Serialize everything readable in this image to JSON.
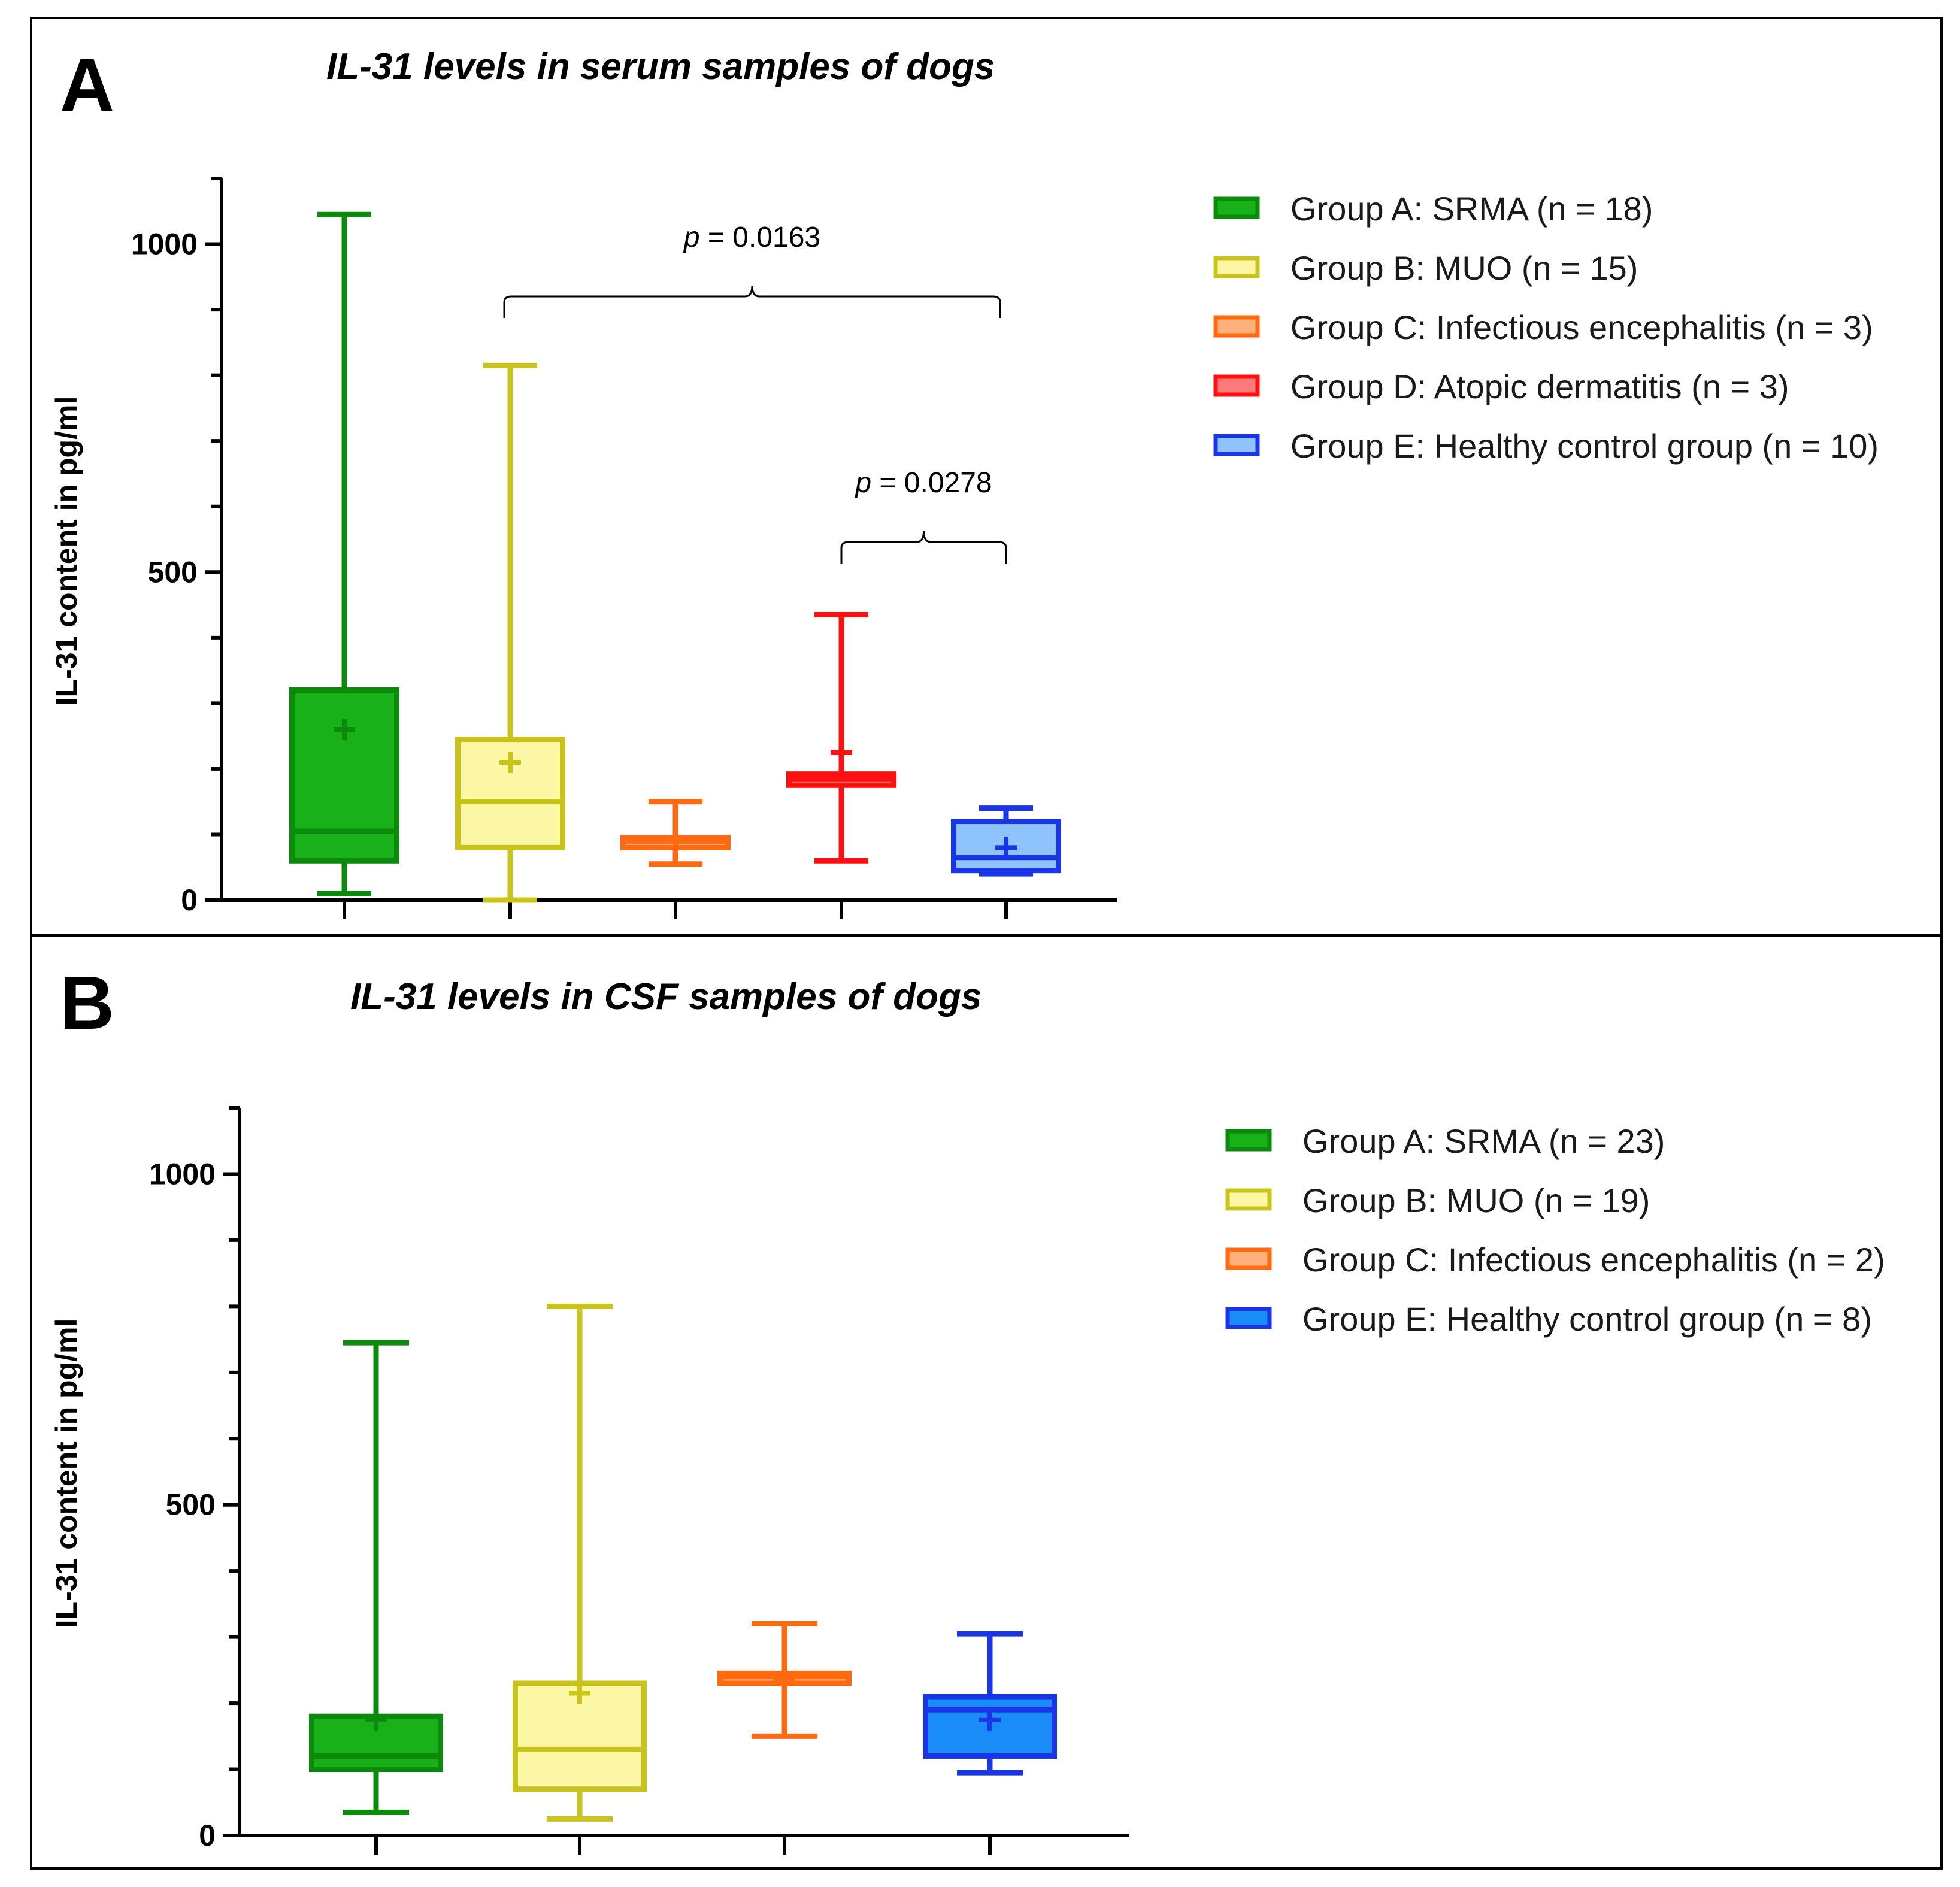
{
  "figure": {
    "panels": [
      {
        "letter": "A",
        "title": "IL-31 levels in serum samples of dogs",
        "ylabel": "IL-31 content in pg/ml",
        "legend": [
          {
            "label": "Group A: SRMA (n = 18)",
            "stroke": "#0b8a0b",
            "fill": "#19b119"
          },
          {
            "label": "Group B: MUO (n = 15)",
            "stroke": "#c9c41c",
            "fill": "#fbf7a4"
          },
          {
            "label": "Group C: Infectious encephalitis (n = 3)",
            "stroke": "#ff6a10",
            "fill": "#fdb07c"
          },
          {
            "label": "Group D: Atopic dermatitis (n = 3)",
            "stroke": "#ff1010",
            "fill": "#ff7b7b"
          },
          {
            "label": "Group E: Healthy control group (n = 10)",
            "stroke": "#1a35e6",
            "fill": "#8fc3fb"
          }
        ],
        "significance": [
          {
            "label": "p = 0.0163",
            "p_symbol": "p",
            "p_rest": " = 0.0163",
            "from_group": 1,
            "to_group": 4
          },
          {
            "label": "p = 0.0278",
            "p_symbol": "p",
            "p_rest": " = 0.0278",
            "from_group": 3,
            "to_group": 4
          }
        ]
      },
      {
        "letter": "B",
        "title": "IL-31 levels in CSF samples of dogs",
        "ylabel": "IL-31 content in pg/ml",
        "legend": [
          {
            "label": "Group A: SRMA (n = 23)",
            "stroke": "#0b8a0b",
            "fill": "#19b119"
          },
          {
            "label": "Group B: MUO (n = 19)",
            "stroke": "#c9c41c",
            "fill": "#fbf7a4"
          },
          {
            "label": "Group C: Infectious encephalitis (n = 2)",
            "stroke": "#ff6a10",
            "fill": "#fdb07c"
          },
          {
            "label": "Group E: Healthy control group (n = 8)",
            "stroke": "#1a35e6",
            "fill": "#1a8cf7"
          }
        ],
        "significance": []
      }
    ]
  },
  "chart_data": [
    {
      "type": "box",
      "title": "IL-31 levels in serum samples of dogs",
      "ylabel": "IL-31 content in pg/ml",
      "ylim": [
        0,
        1100
      ],
      "yticks": [
        0,
        500,
        1000
      ],
      "ytick_labels": [
        "0",
        "500",
        "1000"
      ],
      "grid": false,
      "legend_position": "right",
      "series": [
        {
          "name": "Group A: SRMA (n = 18)",
          "min": 10,
          "q1": 60,
          "median": 105,
          "q3": 320,
          "max": 1045,
          "mean": 260,
          "stroke": "#0b8a0b",
          "fill": "#19b119"
        },
        {
          "name": "Group B: MUO (n = 15)",
          "min": 0,
          "q1": 80,
          "median": 150,
          "q3": 245,
          "max": 815,
          "mean": 210,
          "stroke": "#c9c41c",
          "fill": "#fbf7a4"
        },
        {
          "name": "Group C: Infectious encephalitis (n = 3)",
          "min": 55,
          "q1": 80,
          "median": 90,
          "q3": 95,
          "max": 150,
          "mean": 95,
          "stroke": "#ff6a10",
          "fill": "#fdb07c"
        },
        {
          "name": "Group D: Atopic dermatitis (n = 3)",
          "min": 60,
          "q1": 175,
          "median": 185,
          "q3": 192,
          "max": 435,
          "mean": 225,
          "stroke": "#ff1010",
          "fill": "#ff7b7b"
        },
        {
          "name": "Group E: Healthy control group (n = 10)",
          "min": 40,
          "q1": 45,
          "median": 65,
          "q3": 120,
          "max": 140,
          "mean": 80,
          "stroke": "#1a35e6",
          "fill": "#8fc3fb"
        }
      ]
    },
    {
      "type": "box",
      "title": "IL-31 levels in CSF samples of dogs",
      "ylabel": "IL-31 content in pg/ml",
      "ylim": [
        0,
        1100
      ],
      "yticks": [
        0,
        500,
        1000
      ],
      "ytick_labels": [
        "0",
        "500",
        "1000"
      ],
      "grid": false,
      "legend_position": "right",
      "series": [
        {
          "name": "Group A: SRMA (n = 23)",
          "min": 35,
          "q1": 100,
          "median": 120,
          "q3": 180,
          "max": 745,
          "mean": 175,
          "stroke": "#0b8a0b",
          "fill": "#19b119"
        },
        {
          "name": "Group B: MUO (n = 19)",
          "min": 25,
          "q1": 70,
          "median": 130,
          "q3": 230,
          "max": 800,
          "mean": 215,
          "stroke": "#c9c41c",
          "fill": "#fbf7a4"
        },
        {
          "name": "Group C: Infectious encephalitis (n = 2)",
          "min": 150,
          "q1": 230,
          "median": 240,
          "q3": 245,
          "max": 320,
          "mean": 235,
          "stroke": "#ff6a10",
          "fill": "#fdb07c"
        },
        {
          "name": "Group E: Healthy control group (n = 8)",
          "min": 95,
          "q1": 120,
          "median": 190,
          "q3": 210,
          "max": 305,
          "mean": 175,
          "stroke": "#1a35e6",
          "fill": "#1a8cf7"
        }
      ]
    }
  ]
}
